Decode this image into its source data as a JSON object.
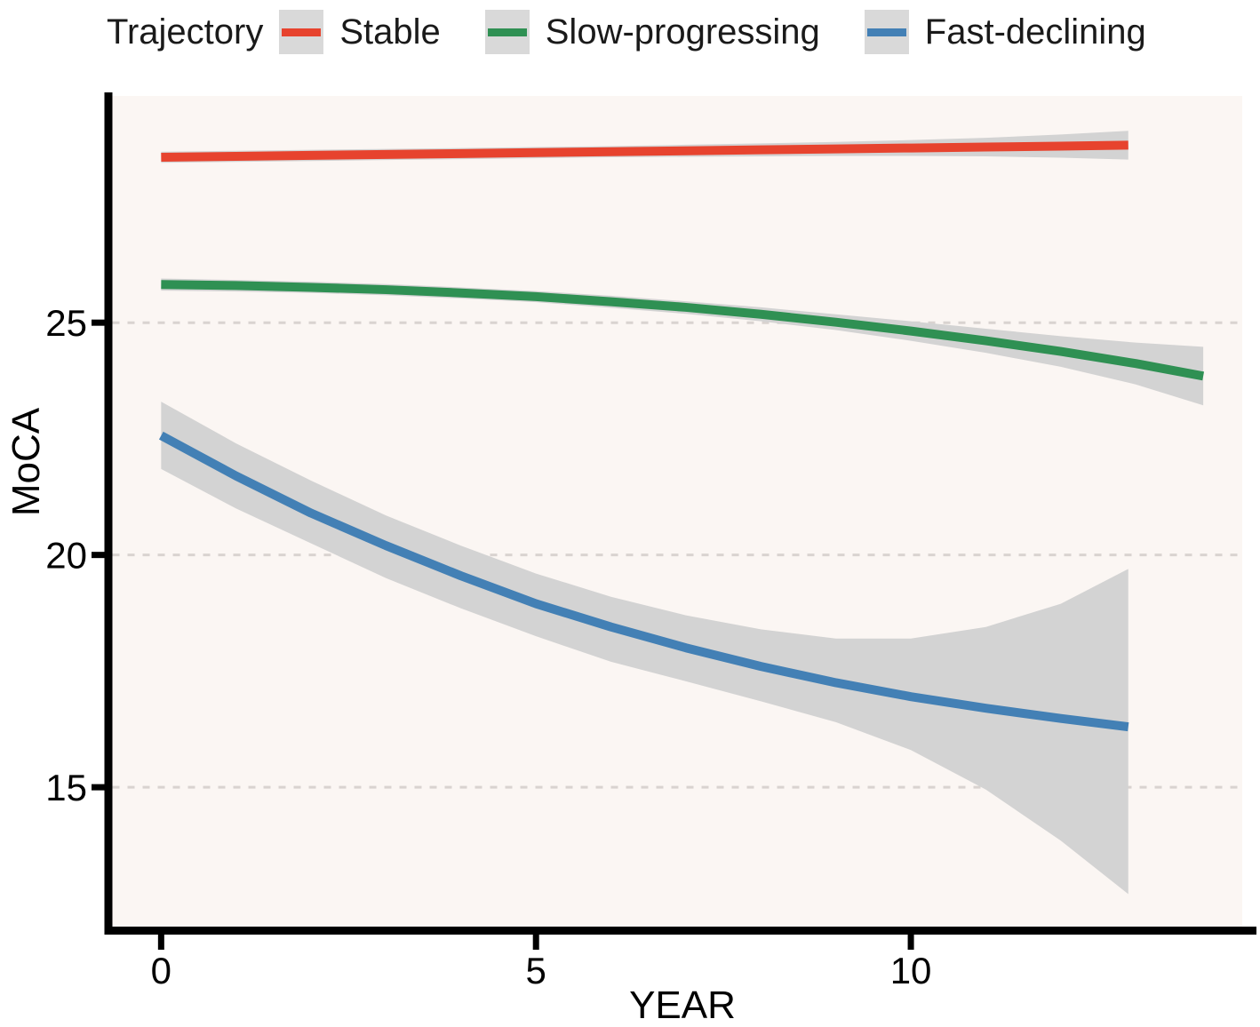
{
  "chart_data": {
    "type": "line",
    "title": "",
    "xlabel": "YEAR",
    "ylabel": "MoCA",
    "xlim": [
      -0.65,
      14.42
    ],
    "ylim": [
      12.0,
      29.88
    ],
    "grid": "horizontal-dashed",
    "legend_position": "top",
    "legend": {
      "title": "Trajectory"
    },
    "x_ticks": [
      {
        "value": 0,
        "label": "0"
      },
      {
        "value": 5,
        "label": "5"
      },
      {
        "value": 10,
        "label": "10"
      }
    ],
    "y_ticks": [
      {
        "value": 15,
        "label": "15"
      },
      {
        "value": 20,
        "label": "20"
      },
      {
        "value": 25,
        "label": "25"
      }
    ],
    "colors": {
      "stable": "#e7432e",
      "slow_progressing": "#2f9053",
      "fast_declining": "#4380b5",
      "band": "#d3d3d3",
      "legend_key_bg": "#d9d9d9",
      "panel_bg": "#fbf6f3",
      "gridline": "#d9d3d0",
      "axis": "#000000"
    },
    "series": [
      {
        "name": "Stable",
        "color": "#e7432e",
        "x": [
          0,
          1,
          2,
          3,
          4,
          5,
          6,
          7,
          8,
          9,
          10,
          11,
          12,
          12.9
        ],
        "y": [
          28.56,
          28.58,
          28.6,
          28.62,
          28.64,
          28.66,
          28.68,
          28.7,
          28.72,
          28.74,
          28.76,
          28.78,
          28.8,
          28.82
        ],
        "upper": [
          28.68,
          28.7,
          28.72,
          28.74,
          28.76,
          28.78,
          28.8,
          28.83,
          28.86,
          28.89,
          28.93,
          28.98,
          29.05,
          29.13
        ],
        "lower": [
          28.44,
          28.46,
          28.48,
          28.5,
          28.52,
          28.54,
          28.56,
          28.57,
          28.58,
          28.59,
          28.59,
          28.58,
          28.55,
          28.51
        ]
      },
      {
        "name": "Slow-progressing",
        "color": "#2f9053",
        "x": [
          0,
          1,
          2,
          3,
          4,
          5,
          6,
          7,
          8,
          9,
          10,
          11,
          12,
          13,
          13.9
        ],
        "y": [
          25.82,
          25.8,
          25.76,
          25.71,
          25.64,
          25.56,
          25.45,
          25.33,
          25.18,
          25.01,
          24.82,
          24.61,
          24.38,
          24.12,
          23.85
        ],
        "upper": [
          25.95,
          25.92,
          25.88,
          25.83,
          25.76,
          25.68,
          25.58,
          25.46,
          25.33,
          25.18,
          25.03,
          24.87,
          24.71,
          24.57,
          24.48
        ],
        "lower": [
          25.69,
          25.67,
          25.64,
          25.59,
          25.52,
          25.44,
          25.32,
          25.19,
          25.03,
          24.84,
          24.61,
          24.35,
          24.05,
          23.67,
          23.22
        ]
      },
      {
        "name": "Fast-declining",
        "color": "#4380b5",
        "x": [
          0,
          1,
          2,
          3,
          4,
          5,
          6,
          7,
          8,
          9,
          10,
          11,
          12,
          12.9
        ],
        "y": [
          22.57,
          21.7,
          20.9,
          20.2,
          19.55,
          18.95,
          18.45,
          18.0,
          17.6,
          17.25,
          16.95,
          16.7,
          16.48,
          16.3
        ],
        "upper": [
          23.3,
          22.4,
          21.6,
          20.85,
          20.2,
          19.6,
          19.1,
          18.7,
          18.4,
          18.2,
          18.2,
          18.45,
          18.95,
          19.7
        ],
        "lower": [
          21.85,
          21.0,
          20.25,
          19.5,
          18.85,
          18.25,
          17.7,
          17.28,
          16.85,
          16.4,
          15.8,
          14.95,
          13.85,
          12.7
        ]
      }
    ]
  }
}
